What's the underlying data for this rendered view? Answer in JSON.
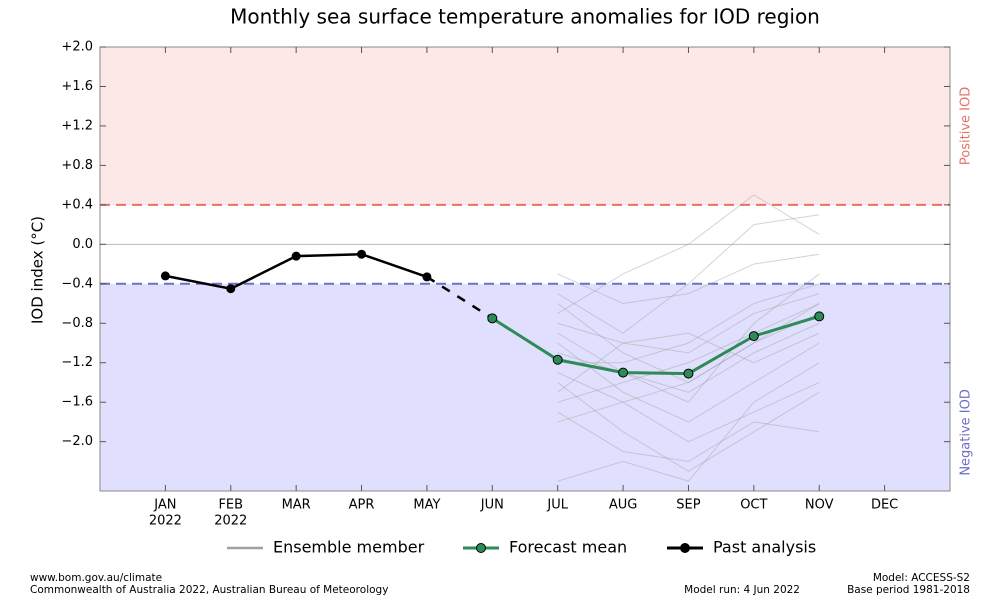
{
  "chart_data": {
    "type": "line",
    "title": "Monthly sea surface temperature anomalies for IOD region",
    "y_label": "IOD index (°C)",
    "categories": [
      "JAN",
      "FEB",
      "MAR",
      "APR",
      "MAY",
      "JUN",
      "JUL",
      "AUG",
      "SEP",
      "OCT",
      "NOV",
      "DEC"
    ],
    "category_years": [
      "2022",
      "2022",
      null,
      null,
      null,
      null,
      null,
      null,
      null,
      null,
      null,
      null
    ],
    "ylim": [
      -2.5,
      2.0
    ],
    "yticks": [
      {
        "value": 2.0,
        "label": "+2.0"
      },
      {
        "value": 1.6,
        "label": "+1.6"
      },
      {
        "value": 1.2,
        "label": "+1.2"
      },
      {
        "value": 0.8,
        "label": "+0.8"
      },
      {
        "value": 0.4,
        "label": "+0.4"
      },
      {
        "value": 0,
        "label": "0.0"
      },
      {
        "value": -0.4,
        "label": "−0.4"
      },
      {
        "value": -0.8,
        "label": "−0.8"
      },
      {
        "value": -1.2,
        "label": "−1.2"
      },
      {
        "value": -1.6,
        "label": "−1.6"
      },
      {
        "value": -2.0,
        "label": "−2.0"
      }
    ],
    "thresholds": [
      {
        "value": 0.4,
        "label": "Positive IOD",
        "color": "#e8706a",
        "fill": "#fde8e8",
        "side": "above"
      },
      {
        "value": -0.4,
        "label": "Negative IOD",
        "color": "#6e6ec4",
        "fill": "#e0e0fe",
        "side": "below"
      }
    ],
    "series": [
      {
        "name": "Ensemble member",
        "color": "#a0a0a0",
        "members": [
          [
            null,
            null,
            null,
            null,
            null,
            null,
            -0.3,
            -0.6,
            -0.5,
            -0.2,
            -0.1,
            null
          ],
          [
            null,
            null,
            null,
            null,
            null,
            null,
            -0.5,
            -0.9,
            -0.4,
            0.2,
            0.3,
            null
          ],
          [
            null,
            null,
            null,
            null,
            null,
            null,
            -0.8,
            -1.0,
            -1.1,
            -0.7,
            -0.5,
            null
          ],
          [
            null,
            null,
            null,
            null,
            null,
            null,
            -0.9,
            -1.3,
            -1.5,
            -1.1,
            -0.8,
            null
          ],
          [
            null,
            null,
            null,
            null,
            null,
            null,
            -1.0,
            -1.5,
            -1.8,
            -1.4,
            -1.0,
            null
          ],
          [
            null,
            null,
            null,
            null,
            null,
            null,
            -1.2,
            -1.2,
            -1.0,
            -0.6,
            -0.4,
            null
          ],
          [
            null,
            null,
            null,
            null,
            null,
            null,
            -1.3,
            -1.6,
            -2.0,
            -1.7,
            -1.4,
            null
          ],
          [
            null,
            null,
            null,
            null,
            null,
            null,
            -1.4,
            -1.9,
            -2.3,
            -1.9,
            -1.5,
            null
          ],
          [
            null,
            null,
            null,
            null,
            null,
            null,
            -1.6,
            -1.4,
            -1.2,
            -0.9,
            -0.6,
            null
          ],
          [
            null,
            null,
            null,
            null,
            null,
            null,
            -1.7,
            -2.1,
            -2.2,
            -1.8,
            -1.9,
            null
          ],
          [
            null,
            null,
            null,
            null,
            null,
            null,
            -1.8,
            -1.6,
            -1.4,
            -1.0,
            -0.7,
            null
          ],
          [
            null,
            null,
            null,
            null,
            null,
            null,
            -2.4,
            -2.2,
            -2.4,
            -1.6,
            -1.2,
            null
          ],
          [
            null,
            null,
            null,
            null,
            null,
            null,
            -0.7,
            -0.3,
            0.0,
            0.5,
            0.1,
            null
          ],
          [
            null,
            null,
            null,
            null,
            null,
            null,
            -1.1,
            -1.3,
            -1.6,
            -0.8,
            -0.3,
            null
          ],
          [
            null,
            null,
            null,
            null,
            null,
            null,
            -1.5,
            -1.0,
            -0.9,
            -1.2,
            -0.9,
            null
          ],
          [
            null,
            null,
            null,
            null,
            null,
            null,
            -0.6,
            -1.1,
            -1.4,
            -1.0,
            -0.6,
            null
          ]
        ]
      },
      {
        "name": "Forecast mean",
        "color": "#2e8b57",
        "values": [
          null,
          null,
          null,
          null,
          null,
          -0.75,
          -1.17,
          -1.3,
          -1.31,
          -0.93,
          -0.73,
          null
        ]
      },
      {
        "name": "Past analysis",
        "color": "#000000",
        "values": [
          -0.32,
          -0.45,
          -0.12,
          -0.1,
          -0.33,
          null,
          null,
          null,
          null,
          null,
          null,
          null
        ]
      }
    ]
  },
  "footer": {
    "left": [
      "www.bom.gov.au/climate",
      "Commonwealth of Australia 2022, Australian Bureau of Meteorology"
    ],
    "model_run": "Model run: 4 Jun 2022",
    "right": [
      "Model: ACCESS-S2",
      "Base period 1981-2018"
    ]
  }
}
